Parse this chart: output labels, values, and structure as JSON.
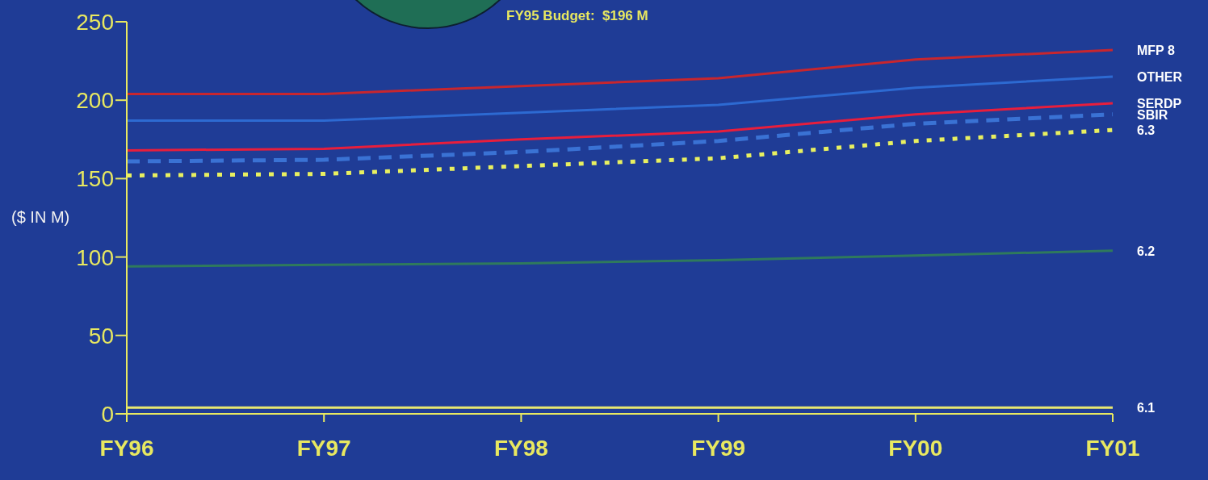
{
  "chart_data": {
    "type": "line",
    "ylabel": "($ IN M)",
    "annotations": [
      "FY95 Budget:  $196 M"
    ],
    "categories": [
      "FY96",
      "FY97",
      "FY98",
      "FY99",
      "FY00",
      "FY01"
    ],
    "ylim": [
      0,
      250
    ],
    "yticks": [
      0,
      50,
      100,
      150,
      200,
      250
    ],
    "marker": "none",
    "series": [
      {
        "name": "MFP 8",
        "color": "#c8262e",
        "line_style": "solid",
        "values": [
          204,
          204,
          209,
          214,
          226,
          232
        ]
      },
      {
        "name": "OTHER",
        "color": "#2d6ad2",
        "line_style": "solid",
        "values": [
          187,
          187,
          192,
          197,
          208,
          215
        ]
      },
      {
        "name": "SERDP",
        "color": "#e81e3c",
        "line_style": "solid",
        "values": [
          168,
          169,
          175,
          180,
          191,
          198
        ]
      },
      {
        "name": "SBIR",
        "color": "#3a72d4",
        "line_style": "dashed",
        "values": [
          161,
          162,
          167,
          174,
          185,
          191
        ]
      },
      {
        "name": "6.3",
        "color": "#e8f060",
        "line_style": "dotted",
        "values": [
          152,
          153,
          158,
          163,
          174,
          181
        ]
      },
      {
        "name": "6.2",
        "color": "#2f7a5c",
        "line_style": "solid",
        "values": [
          94,
          95,
          96,
          98,
          101,
          104
        ]
      },
      {
        "name": "6.1",
        "color": "#e8e870",
        "line_style": "solid",
        "values": [
          4,
          4,
          4,
          4,
          4,
          4
        ]
      }
    ]
  }
}
